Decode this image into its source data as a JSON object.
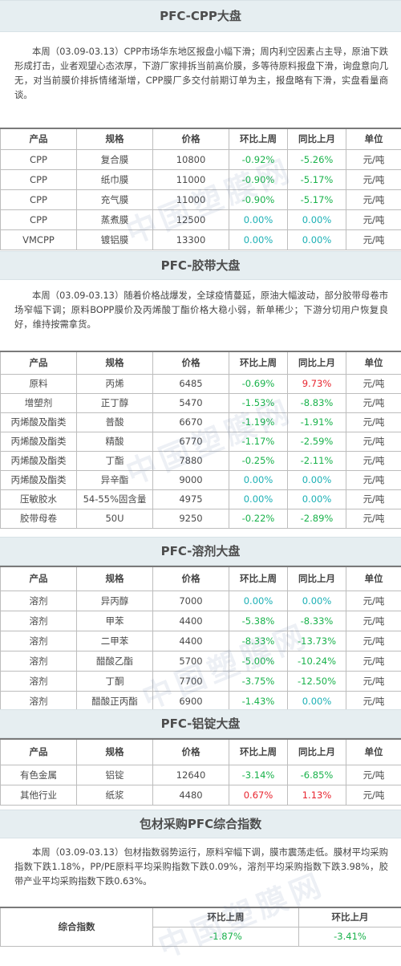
{
  "watermark": "中国塑膜网",
  "sections": {
    "cpp": {
      "title": "PFC-CPP大盘",
      "paragraph": "本周（03.09-03.13）CPP市场华东地区报盘小幅下滑；周内利空因素占主导，原油下跌形成打击，业者观望心态浓厚，下游厂家排拆当前高价膜，多等待原料报盘下滑，询盘意向几无，对当前膜价排拆情绪渐增，CPP膜厂多交付前期订单为主，报盘略有下滑，实盘看量商谈。",
      "headers": [
        "产品",
        "规格",
        "价格",
        "环比上周",
        "同比上月",
        "单位"
      ],
      "rows": [
        [
          "CPP",
          "复合膜",
          "10800",
          "-0.92%",
          "-5.26%",
          "元/吨"
        ],
        [
          "CPP",
          "纸巾膜",
          "11000",
          "-0.90%",
          "-5.17%",
          "元/吨"
        ],
        [
          "CPP",
          "充气膜",
          "11000",
          "-0.90%",
          "-5.17%",
          "元/吨"
        ],
        [
          "CPP",
          "蒸煮膜",
          "12500",
          "0.00%",
          "0.00%",
          "元/吨"
        ],
        [
          "VMCPP",
          "镀铝膜",
          "13300",
          "0.00%",
          "0.00%",
          "元/吨"
        ]
      ]
    },
    "tape": {
      "title": "PFC-胶带大盘",
      "paragraph": "本周（03.09-03.13）随着价格战爆发，全球疫情蔓延，原油大幅波动，部分胶带母卷市场窄幅下调；原料BOPP膜价及丙烯酸丁酯价格大稳小弱，新单稀少；下游分切用户恢复良好，维持按需拿货。",
      "headers": [
        "产品",
        "规格",
        "价格",
        "环比上周",
        "同比上月",
        "单位"
      ],
      "rows": [
        [
          "原料",
          "丙烯",
          "6485",
          "-0.69%",
          "9.73%",
          "元/吨"
        ],
        [
          "增塑剂",
          "正丁醇",
          "5470",
          "-1.53%",
          "-8.83%",
          "元/吨"
        ],
        [
          "丙烯酸及酯类",
          "普酸",
          "6670",
          "-1.19%",
          "-1.91%",
          "元/吨"
        ],
        [
          "丙烯酸及酯类",
          "精酸",
          "6770",
          "-1.17%",
          "-2.59%",
          "元/吨"
        ],
        [
          "丙烯酸及酯类",
          "丁酯",
          "7880",
          "-0.25%",
          "-2.11%",
          "元/吨"
        ],
        [
          "丙烯酸及酯类",
          "异辛酯",
          "9000",
          "0.00%",
          "0.00%",
          "元/吨"
        ],
        [
          "压敏胶水",
          "54-55%固含量",
          "4975",
          "0.00%",
          "0.00%",
          "元/吨"
        ],
        [
          "胶带母卷",
          "50U",
          "9250",
          "-0.22%",
          "-2.89%",
          "元/吨"
        ]
      ]
    },
    "solvent": {
      "title": "PFC-溶剂大盘",
      "headers": [
        "产品",
        "规格",
        "价格",
        "环比上周",
        "同比上月",
        "单位"
      ],
      "rows": [
        [
          "溶剂",
          "异丙醇",
          "7000",
          "0.00%",
          "0.00%",
          "元/吨"
        ],
        [
          "溶剂",
          "甲苯",
          "4400",
          "-5.38%",
          "-8.33%",
          "元/吨"
        ],
        [
          "溶剂",
          "二甲苯",
          "4400",
          "-8.33%",
          "-13.73%",
          "元/吨"
        ],
        [
          "溶剂",
          "醋酸乙酯",
          "5700",
          "-5.00%",
          "-10.24%",
          "元/吨"
        ],
        [
          "溶剂",
          "丁酮",
          "7700",
          "-3.75%",
          "-12.50%",
          "元/吨"
        ],
        [
          "溶剂",
          "醋酸正丙酯",
          "6900",
          "-1.43%",
          "0.00%",
          "元/吨"
        ]
      ]
    },
    "ingot": {
      "title": "PFC-铝锭大盘",
      "headers": [
        "产品",
        "规格",
        "价格",
        "环比上周",
        "同比上月",
        "单位"
      ],
      "rows": [
        [
          "有色金属",
          "铝锭",
          "12640",
          "-3.14%",
          "-6.85%",
          "元/吨"
        ],
        [
          "其他行业",
          "纸浆",
          "4480",
          "0.67%",
          "1.13%",
          "元/吨"
        ]
      ]
    },
    "index": {
      "title": "包材采购PFC综合指数",
      "paragraph": "本周（03.09-03.13）包材指数弱势运行，原料窄幅下调，膜市震荡走低。膜材平均采购指数下跌1.18%，PP/PE原料平均采购指数下跌0.09%，溶剂平均采购指数下跌3.98%，胶带产业平均采购指数下跌0.63%。",
      "label": "综合指数",
      "headers": [
        "环比上周",
        "环比上月"
      ],
      "values": [
        "-1.87%",
        "-3.41%"
      ]
    }
  },
  "colors": {
    "negative": "#19b24b",
    "zero": "#1bb0b5",
    "positive": "#e8252f",
    "header_bg": "#e6eef1"
  }
}
